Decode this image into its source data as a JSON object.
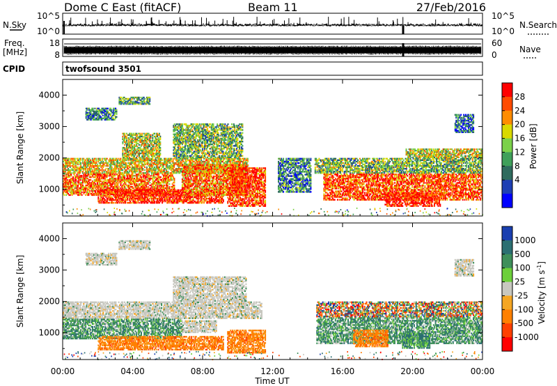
{
  "header": {
    "title": "Dome C East (fitACF)",
    "beam": "Beam 11",
    "date": "27/Feb/2016"
  },
  "sky_panel": {
    "left_label": "N.Sky",
    "left_ticks": [
      "10^5",
      "10^0"
    ],
    "right_label": "N.Search",
    "right_ticks": [
      "10^5",
      "10^0"
    ]
  },
  "freq_panel": {
    "left_label_1": "Freq.",
    "left_label_2": "[MHz]",
    "left_ticks": [
      "18",
      "8"
    ],
    "right_label": "Nave",
    "right_ticks": [
      "60",
      "0"
    ]
  },
  "cpid_panel": {
    "label": "CPID",
    "program": "twofsound 3501"
  },
  "x_axis": {
    "label": "Time UT",
    "ticks": [
      "00:00",
      "04:00",
      "08:00",
      "12:00",
      "16:00",
      "20:00",
      "00:00"
    ]
  },
  "chart_data": [
    {
      "type": "heatmap",
      "xlabel": "Time UT",
      "ylabel": "Slant Range [km]",
      "xlim": [
        0,
        24
      ],
      "ylim": [
        150,
        4500
      ],
      "y_ticks": [
        1000,
        2000,
        3000,
        4000
      ],
      "colorbar": {
        "label": "Power [dB]",
        "ticks": [
          "28",
          "24",
          "20",
          "16",
          "12",
          "8",
          "4"
        ],
        "colors": [
          "#ff0000",
          "#ff4b00",
          "#ff8c00",
          "#d9d900",
          "#7bd14a",
          "#3fa05a",
          "#2f6b5e",
          "#1e3fb4",
          "#0000ff"
        ]
      },
      "regions": [
        {
          "t0": 0.0,
          "t1": 10.6,
          "r0": 1500,
          "r1": 2000,
          "level": 0.62
        },
        {
          "t0": 0.0,
          "t1": 6.4,
          "r0": 800,
          "r1": 1500,
          "level": 0.8
        },
        {
          "t0": 2.0,
          "t1": 9.2,
          "r0": 550,
          "r1": 1000,
          "level": 0.92
        },
        {
          "t0": 6.8,
          "t1": 10.6,
          "r0": 800,
          "r1": 1800,
          "level": 0.78
        },
        {
          "t0": 9.4,
          "t1": 11.6,
          "r0": 450,
          "r1": 1700,
          "level": 0.88
        },
        {
          "t0": 3.4,
          "t1": 5.6,
          "r0": 1900,
          "r1": 2800,
          "level": 0.55
        },
        {
          "t0": 6.3,
          "t1": 10.3,
          "r0": 2000,
          "r1": 3100,
          "level": 0.45
        },
        {
          "t0": 3.2,
          "t1": 5.0,
          "r0": 3700,
          "r1": 3950,
          "level": 0.4
        },
        {
          "t0": 1.3,
          "t1": 3.1,
          "r0": 3200,
          "r1": 3600,
          "level": 0.3
        },
        {
          "t0": 14.4,
          "t1": 24.0,
          "r0": 1500,
          "r1": 2000,
          "level": 0.45
        },
        {
          "t0": 14.9,
          "t1": 24.0,
          "r0": 650,
          "r1": 1500,
          "level": 0.85
        },
        {
          "t0": 18.4,
          "t1": 21.6,
          "r0": 450,
          "r1": 900,
          "level": 0.95
        },
        {
          "t0": 22.4,
          "t1": 23.5,
          "r0": 2800,
          "r1": 3400,
          "level": 0.25
        },
        {
          "t0": 19.6,
          "t1": 24.0,
          "r0": 2000,
          "r1": 2300,
          "level": 0.55
        },
        {
          "t0": 12.3,
          "t1": 14.2,
          "r0": 900,
          "r1": 2000,
          "level": 0.3
        }
      ]
    },
    {
      "type": "heatmap",
      "xlabel": "Time UT",
      "ylabel": "Slant Range [km]",
      "xlim": [
        0,
        24
      ],
      "ylim": [
        150,
        4500
      ],
      "y_ticks": [
        1000,
        2000,
        3000,
        4000
      ],
      "colorbar": {
        "label": "Velocity [m s^-1]",
        "ticks": [
          "1000",
          "500",
          "100",
          "25",
          "-25",
          "-100",
          "-500",
          "-1000"
        ],
        "colors": [
          "#1a3fb0",
          "#2b6f72",
          "#3e8f5a",
          "#6ccf3a",
          "#c8c8c0",
          "#f5a623",
          "#ff8000",
          "#ff4000",
          "#ff0000"
        ]
      },
      "regions": [
        {
          "t0": 0.0,
          "t1": 11.4,
          "r0": 1450,
          "r1": 2000,
          "kind": "gray"
        },
        {
          "t0": 0.0,
          "t1": 6.8,
          "r0": 800,
          "r1": 1450,
          "kind": "green"
        },
        {
          "t0": 2.0,
          "t1": 9.2,
          "r0": 450,
          "r1": 900,
          "kind": "orange"
        },
        {
          "t0": 9.4,
          "t1": 11.6,
          "r0": 350,
          "r1": 1100,
          "kind": "orange"
        },
        {
          "t0": 6.3,
          "t1": 10.5,
          "r0": 2000,
          "r1": 2800,
          "kind": "gray"
        },
        {
          "t0": 3.2,
          "t1": 5.0,
          "r0": 3650,
          "r1": 3950,
          "kind": "gray"
        },
        {
          "t0": 1.3,
          "t1": 3.1,
          "r0": 3150,
          "r1": 3550,
          "kind": "gray"
        },
        {
          "t0": 14.5,
          "t1": 24.0,
          "r0": 650,
          "r1": 1500,
          "kind": "green"
        },
        {
          "t0": 14.5,
          "t1": 24.0,
          "r0": 1500,
          "r1": 2000,
          "kind": "mixed"
        },
        {
          "t0": 16.6,
          "t1": 18.6,
          "r0": 550,
          "r1": 1100,
          "kind": "orange"
        },
        {
          "t0": 19.4,
          "t1": 21.0,
          "r0": 500,
          "r1": 1000,
          "kind": "greenlow"
        },
        {
          "t0": 22.4,
          "t1": 23.5,
          "r0": 2800,
          "r1": 3350,
          "kind": "gray"
        },
        {
          "t0": 6.8,
          "t1": 8.8,
          "r0": 1000,
          "r1": 1400,
          "kind": "gray"
        }
      ]
    }
  ]
}
